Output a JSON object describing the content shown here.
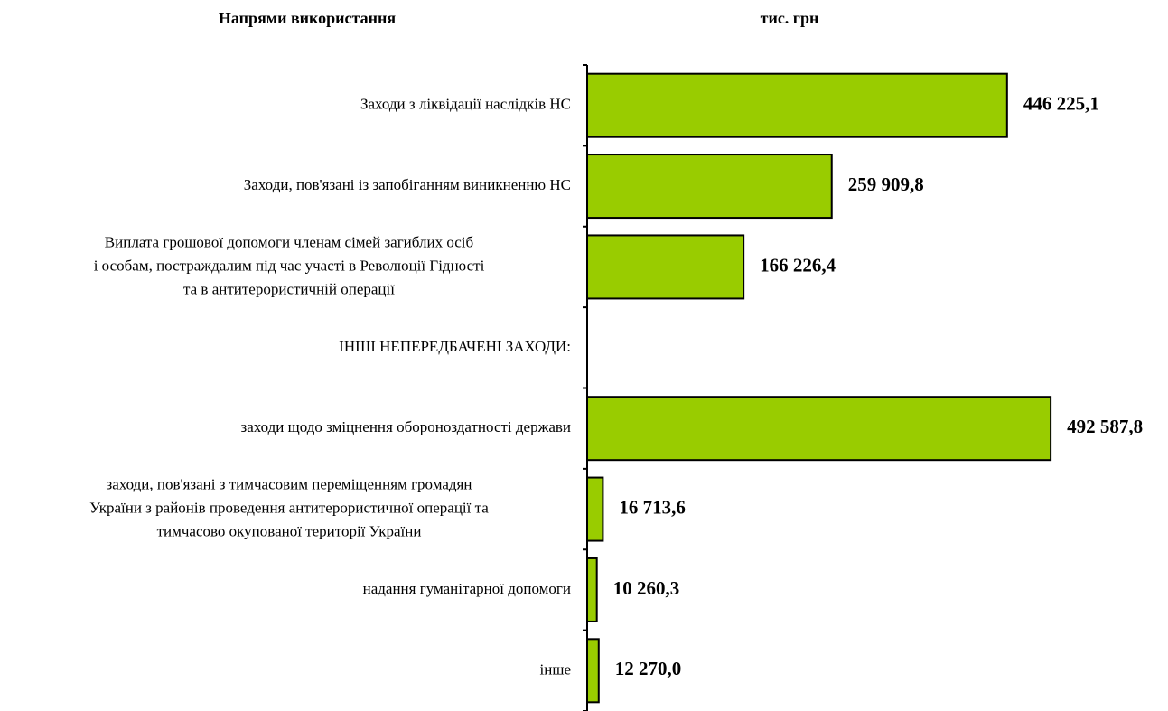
{
  "chart_data": {
    "type": "hbar",
    "title": "Напрями використання",
    "unit_label": "тис. грн",
    "categories": [
      "Заходи з ліквідації наслідків НС",
      "Заходи, пов'язані із запобіганням виникненню НС",
      "Виплата грошової допомоги членам сімей загиблих осіб\nі особам, постраждалим під час участі в Революції Гідності\nта в антитерористичній операції",
      "ІНШІ НЕПЕРЕДБАЧЕНІ ЗАХОДИ:",
      "заходи щодо зміцнення обороноздатності держави",
      "заходи, пов'язані з тимчасовим переміщенням громадян\nУкраїни з районів проведення антитерористичної операції та\nтимчасово окупованої території України",
      "надання гуманітарної допомоги",
      "інше"
    ],
    "values": [
      446225.1,
      259909.8,
      166226.4,
      null,
      492587.8,
      16713.6,
      10260.3,
      12270.0
    ],
    "value_labels": [
      "446 225,1",
      "259 909,8",
      "166 226,4",
      null,
      "492 587,8",
      "16 713,6",
      "10 260,3",
      "12 270,0"
    ],
    "color": "#99cc00",
    "xlim": [
      0,
      600000
    ]
  }
}
